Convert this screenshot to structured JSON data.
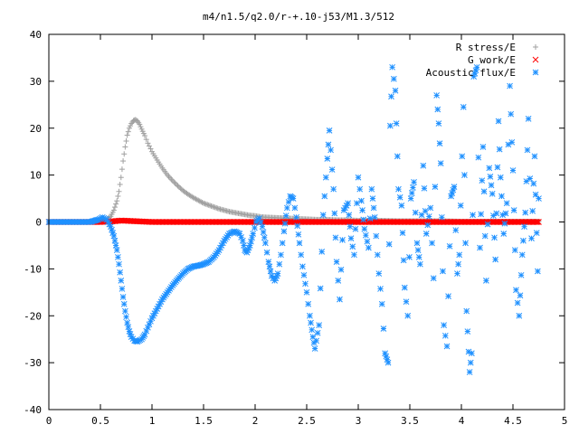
{
  "chart_data": {
    "type": "scatter",
    "title": "m4/n1.5/q2.0/r-+.10-j53/M1.3/512",
    "xlabel": "",
    "ylabel": "",
    "xlim": [
      0,
      5
    ],
    "ylim": [
      -40,
      40
    ],
    "xticks": [
      "0",
      "0.5",
      "1",
      "1.5",
      "2",
      "2.5",
      "3",
      "3.5",
      "4",
      "4.5",
      "5"
    ],
    "yticks": [
      "-40",
      "-30",
      "-20",
      "-10",
      "0",
      "10",
      "20",
      "30",
      "40"
    ],
    "grid": false,
    "legend_position": "top-right",
    "series": [
      {
        "name": "R stress/E",
        "color": "#a0a0a0",
        "marker": "plus",
        "points": [
          [
            0.0,
            0
          ],
          [
            0.1,
            0
          ],
          [
            0.2,
            0
          ],
          [
            0.3,
            0
          ],
          [
            0.4,
            0
          ],
          [
            0.5,
            0.1
          ],
          [
            0.55,
            0.4
          ],
          [
            0.6,
            1.2
          ],
          [
            0.63,
            2.5
          ],
          [
            0.66,
            4.5
          ],
          [
            0.68,
            6.5
          ],
          [
            0.7,
            9.5
          ],
          [
            0.72,
            13
          ],
          [
            0.74,
            16
          ],
          [
            0.76,
            18.5
          ],
          [
            0.78,
            20
          ],
          [
            0.8,
            21
          ],
          [
            0.82,
            21.6
          ],
          [
            0.84,
            21.8
          ],
          [
            0.86,
            21.5
          ],
          [
            0.88,
            20.8
          ],
          [
            0.9,
            19.8
          ],
          [
            0.93,
            18.4
          ],
          [
            0.96,
            16.8
          ],
          [
            1.0,
            15.0
          ],
          [
            1.05,
            13.2
          ],
          [
            1.1,
            11.5
          ],
          [
            1.15,
            10.0
          ],
          [
            1.2,
            8.8
          ],
          [
            1.25,
            7.7
          ],
          [
            1.3,
            6.7
          ],
          [
            1.35,
            5.9
          ],
          [
            1.4,
            5.2
          ],
          [
            1.45,
            4.6
          ],
          [
            1.5,
            4.0
          ],
          [
            1.55,
            3.6
          ],
          [
            1.6,
            3.2
          ],
          [
            1.65,
            2.8
          ],
          [
            1.7,
            2.5
          ],
          [
            1.75,
            2.2
          ],
          [
            1.8,
            2.0
          ],
          [
            1.85,
            1.8
          ],
          [
            1.9,
            1.6
          ],
          [
            1.95,
            1.4
          ],
          [
            2.0,
            1.3
          ],
          [
            2.05,
            1.1
          ],
          [
            2.1,
            1.0
          ],
          [
            2.2,
            0.9
          ],
          [
            2.3,
            0.8
          ],
          [
            2.4,
            0.7
          ],
          [
            2.5,
            0.6
          ],
          [
            2.6,
            0.5
          ],
          [
            2.7,
            0.5
          ],
          [
            2.8,
            0.4
          ],
          [
            2.9,
            0.4
          ],
          [
            3.0,
            0.3
          ],
          [
            3.2,
            0.3
          ],
          [
            3.4,
            0.2
          ],
          [
            3.6,
            0.2
          ],
          [
            3.8,
            0.2
          ],
          [
            4.0,
            0.1
          ],
          [
            4.2,
            0.1
          ],
          [
            4.4,
            0.1
          ],
          [
            4.6,
            0.1
          ],
          [
            4.75,
            0.1
          ]
        ]
      },
      {
        "name": "G work/E",
        "color": "#ff0000",
        "marker": "cross",
        "points": [
          [
            0.0,
            0
          ],
          [
            0.1,
            0
          ],
          [
            0.2,
            0
          ],
          [
            0.3,
            0
          ],
          [
            0.4,
            0
          ],
          [
            0.5,
            0
          ],
          [
            0.6,
            0.1
          ],
          [
            0.7,
            0.3
          ],
          [
            0.8,
            0.2
          ],
          [
            0.9,
            0.1
          ],
          [
            1.0,
            0
          ],
          [
            1.2,
            0
          ],
          [
            1.4,
            0
          ],
          [
            1.6,
            0
          ],
          [
            1.8,
            0
          ],
          [
            2.0,
            0
          ],
          [
            2.2,
            0
          ],
          [
            2.4,
            0
          ],
          [
            2.6,
            0
          ],
          [
            2.8,
            0
          ],
          [
            3.0,
            0
          ],
          [
            3.2,
            0
          ],
          [
            3.4,
            0
          ],
          [
            3.6,
            0
          ],
          [
            3.8,
            0
          ],
          [
            4.0,
            0
          ],
          [
            4.2,
            0
          ],
          [
            4.4,
            0
          ],
          [
            4.6,
            0
          ],
          [
            4.75,
            0
          ]
        ]
      },
      {
        "name": "Acoustic flux/E",
        "color": "#1e90ff",
        "marker": "star",
        "points": [
          [
            0.0,
            0
          ],
          [
            0.1,
            0
          ],
          [
            0.2,
            0
          ],
          [
            0.3,
            0
          ],
          [
            0.4,
            0
          ],
          [
            0.48,
            0.5
          ],
          [
            0.52,
            1.0
          ],
          [
            0.56,
            0.5
          ],
          [
            0.6,
            -1.0
          ],
          [
            0.63,
            -3.0
          ],
          [
            0.66,
            -6.0
          ],
          [
            0.68,
            -9.0
          ],
          [
            0.7,
            -12.5
          ],
          [
            0.72,
            -16.0
          ],
          [
            0.74,
            -19.0
          ],
          [
            0.76,
            -21.5
          ],
          [
            0.78,
            -23.3
          ],
          [
            0.8,
            -24.5
          ],
          [
            0.83,
            -25.3
          ],
          [
            0.86,
            -25.5
          ],
          [
            0.9,
            -25.0
          ],
          [
            0.93,
            -24.0
          ],
          [
            0.96,
            -22.5
          ],
          [
            1.0,
            -20.5
          ],
          [
            1.05,
            -18.5
          ],
          [
            1.1,
            -16.5
          ],
          [
            1.15,
            -15.0
          ],
          [
            1.2,
            -13.5
          ],
          [
            1.25,
            -12.2
          ],
          [
            1.3,
            -11.0
          ],
          [
            1.35,
            -10.0
          ],
          [
            1.4,
            -9.5
          ],
          [
            1.45,
            -9.3
          ],
          [
            1.5,
            -9.0
          ],
          [
            1.55,
            -8.5
          ],
          [
            1.6,
            -7.5
          ],
          [
            1.65,
            -6.0
          ],
          [
            1.7,
            -4.0
          ],
          [
            1.75,
            -2.5
          ],
          [
            1.8,
            -2.0
          ],
          [
            1.85,
            -2.5
          ],
          [
            1.88,
            -4.0
          ],
          [
            1.9,
            -6.0
          ],
          [
            1.92,
            -6.5
          ],
          [
            1.95,
            -5.0
          ],
          [
            1.98,
            -2.5
          ],
          [
            2.01,
            0.0
          ],
          [
            2.04,
            0.8
          ],
          [
            2.07,
            -1.0
          ],
          [
            2.1,
            -4.5
          ],
          [
            2.13,
            -8.5
          ],
          [
            2.16,
            -11.5
          ],
          [
            2.19,
            -12.5
          ],
          [
            2.22,
            -11.0
          ],
          [
            2.25,
            -7.0
          ],
          [
            2.28,
            -2.0
          ],
          [
            2.31,
            3.0
          ],
          [
            2.34,
            5.5
          ],
          [
            2.37,
            5.0
          ],
          [
            2.4,
            1.0
          ],
          [
            2.43,
            -4.5
          ],
          [
            2.46,
            -9.5
          ],
          [
            2.5,
            -15.0
          ],
          [
            2.53,
            -20.0
          ],
          [
            2.56,
            -24.5
          ],
          [
            2.58,
            -27.0
          ],
          [
            2.62,
            -22.0
          ],
          [
            2.66,
            1.5
          ],
          [
            2.7,
            13.5
          ],
          [
            2.72,
            19.5
          ],
          [
            2.76,
            7.0
          ],
          [
            2.79,
            -8.5
          ],
          [
            2.82,
            -16.5
          ],
          [
            2.86,
            2.5
          ],
          [
            2.9,
            4.0
          ],
          [
            2.93,
            -3.5
          ],
          [
            2.96,
            -7.0
          ],
          [
            3.0,
            9.5
          ],
          [
            3.03,
            4.5
          ],
          [
            3.06,
            -1.5
          ],
          [
            3.1,
            -5.5
          ],
          [
            3.13,
            7.0
          ],
          [
            3.16,
            1.0
          ],
          [
            3.2,
            -11.0
          ],
          [
            3.23,
            -17.5
          ],
          [
            3.26,
            -28.0
          ],
          [
            3.29,
            -30.0
          ],
          [
            3.31,
            20.5
          ],
          [
            3.33,
            33.0
          ],
          [
            3.36,
            28.0
          ],
          [
            3.39,
            7.0
          ],
          [
            3.42,
            3.5
          ],
          [
            3.45,
            -14.0
          ],
          [
            3.48,
            -20.0
          ],
          [
            3.51,
            5.0
          ],
          [
            3.54,
            8.5
          ],
          [
            3.57,
            -4.5
          ],
          [
            3.6,
            -9.0
          ],
          [
            3.63,
            12.0
          ],
          [
            3.66,
            -2.5
          ],
          [
            3.7,
            3.0
          ],
          [
            3.73,
            -12.0
          ],
          [
            3.76,
            27.0
          ],
          [
            3.78,
            21.0
          ],
          [
            3.8,
            12.5
          ],
          [
            3.83,
            -22.0
          ],
          [
            3.86,
            -26.5
          ],
          [
            3.9,
            5.5
          ],
          [
            3.93,
            7.5
          ],
          [
            3.96,
            -11.0
          ],
          [
            3.98,
            -7.0
          ],
          [
            4.02,
            24.5
          ],
          [
            4.05,
            -19.0
          ],
          [
            4.08,
            -32.0
          ],
          [
            4.1,
            -28.0
          ],
          [
            4.12,
            31.0
          ],
          [
            4.15,
            33.0
          ],
          [
            4.18,
            -5.5
          ],
          [
            4.21,
            16.0
          ],
          [
            4.24,
            -12.5
          ],
          [
            4.27,
            11.5
          ],
          [
            4.3,
            6.0
          ],
          [
            4.33,
            -8.0
          ],
          [
            4.36,
            21.5
          ],
          [
            4.38,
            9.5
          ],
          [
            4.41,
            -2.5
          ],
          [
            4.44,
            4.0
          ],
          [
            4.47,
            29.0
          ],
          [
            4.5,
            11.0
          ],
          [
            4.53,
            -14.5
          ],
          [
            4.56,
            -20.0
          ],
          [
            4.59,
            -7.0
          ],
          [
            4.62,
            2.0
          ],
          [
            4.65,
            22.0
          ],
          [
            4.68,
            -3.5
          ],
          [
            4.71,
            14.0
          ],
          [
            4.74,
            -10.5
          ],
          [
            4.75,
            5.0
          ]
        ]
      }
    ]
  }
}
